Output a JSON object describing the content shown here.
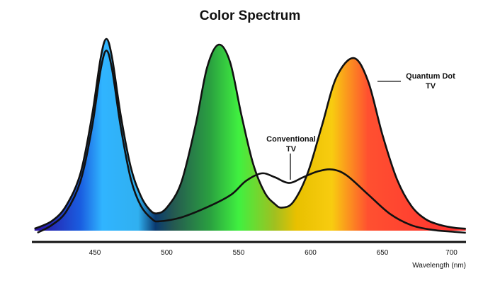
{
  "chart_data": {
    "type": "area",
    "title": "Color Spectrum",
    "xlabel": "Wavelength (nm)",
    "ylabel": "",
    "xlim": [
      408,
      708
    ],
    "ylim": [
      0,
      1.05
    ],
    "xticks": [
      450,
      500,
      550,
      600,
      650,
      700
    ],
    "grid": false,
    "series": [
      {
        "name": "Quantum Dot TV",
        "label_lines": [
          "Quantum Dot",
          "TV"
        ],
        "filled": true,
        "x": [
          408,
          420,
          430,
          440,
          448,
          454,
          458,
          462,
          468,
          475,
          482,
          488,
          493,
          500,
          510,
          520,
          528,
          536,
          544,
          552,
          560,
          568,
          575,
          580,
          588,
          598,
          608,
          618,
          630,
          640,
          650,
          660,
          670,
          680,
          690,
          700,
          708
        ],
        "y": [
          0.01,
          0.05,
          0.13,
          0.3,
          0.6,
          0.9,
          1.0,
          0.9,
          0.6,
          0.33,
          0.18,
          0.11,
          0.09,
          0.12,
          0.25,
          0.55,
          0.85,
          0.97,
          0.88,
          0.6,
          0.35,
          0.2,
          0.14,
          0.12,
          0.15,
          0.3,
          0.55,
          0.8,
          0.9,
          0.78,
          0.5,
          0.27,
          0.13,
          0.06,
          0.03,
          0.015,
          0.01
        ]
      },
      {
        "name": "Conventional TV",
        "label_lines": [
          "Conventional",
          "TV"
        ],
        "filled": false,
        "x": [
          410,
          420,
          430,
          440,
          448,
          454,
          458,
          462,
          468,
          475,
          482,
          490,
          495,
          510,
          530,
          545,
          555,
          566,
          575,
          585,
          595,
          605,
          615,
          625,
          640,
          655,
          670,
          685,
          700,
          708
        ],
        "y": [
          0.0,
          0.04,
          0.11,
          0.27,
          0.55,
          0.85,
          0.95,
          0.85,
          0.55,
          0.28,
          0.14,
          0.07,
          0.06,
          0.08,
          0.14,
          0.2,
          0.27,
          0.31,
          0.29,
          0.26,
          0.29,
          0.32,
          0.33,
          0.3,
          0.2,
          0.1,
          0.04,
          0.015,
          0.005,
          0.0
        ]
      }
    ],
    "spectrum_colors": [
      {
        "nm": 408,
        "color": "#2a0fa0"
      },
      {
        "nm": 440,
        "color": "#1a5ee0"
      },
      {
        "nm": 455,
        "color": "#30b4ff"
      },
      {
        "nm": 480,
        "color": "#30b0f0"
      },
      {
        "nm": 492,
        "color": "#0a3a70"
      },
      {
        "nm": 505,
        "color": "#255a50"
      },
      {
        "nm": 530,
        "color": "#2aa040"
      },
      {
        "nm": 550,
        "color": "#40f040"
      },
      {
        "nm": 575,
        "color": "#a0c020"
      },
      {
        "nm": 590,
        "color": "#e8c000"
      },
      {
        "nm": 615,
        "color": "#f8cc10"
      },
      {
        "nm": 640,
        "color": "#ff5030"
      },
      {
        "nm": 708,
        "color": "#ff3030"
      }
    ]
  }
}
